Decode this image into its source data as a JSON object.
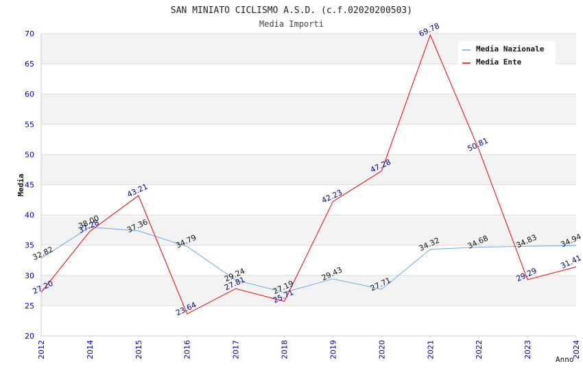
{
  "chart_data": {
    "type": "line",
    "title": "SAN MINIATO CICLISMO A.S.D. (c.f.02020200503)",
    "subtitle": "Media Importi",
    "xlabel": "Anno",
    "ylabel": "Media",
    "ylim": [
      20,
      70
    ],
    "y_ticks": [
      "20",
      "25",
      "30",
      "35",
      "40",
      "45",
      "50",
      "55",
      "60",
      "65",
      "70"
    ],
    "categories": [
      "2012",
      "2014",
      "2015",
      "2016",
      "2017",
      "2018",
      "2019",
      "2020",
      "2021",
      "2022",
      "2023",
      "2024"
    ],
    "series": [
      {
        "name": "Media Nazionale",
        "color": "#66aaee",
        "values": [
          32.82,
          38.0,
          37.36,
          34.79,
          29.24,
          27.19,
          29.43,
          27.71,
          34.32,
          34.68,
          34.83,
          34.94
        ],
        "labels": [
          "32.82",
          "38.00",
          "37.36",
          "34.79",
          "29.24",
          "27.19",
          "29.43",
          "27.71",
          "34.32",
          "34.68",
          "34.83",
          "34.94"
        ]
      },
      {
        "name": "Media Ente",
        "color": "#ee0000",
        "values": [
          27.2,
          37.28,
          43.21,
          23.64,
          27.81,
          25.71,
          42.23,
          47.28,
          69.78,
          50.81,
          29.29,
          31.41
        ],
        "labels": [
          "27.20",
          "37.28",
          "43.21",
          "23.64",
          "27.81",
          "25.71",
          "42.23",
          "47.28",
          "69.78",
          "50.81",
          "29.29",
          "31.41"
        ]
      }
    ],
    "legend": {
      "position": "top-right"
    },
    "grid": true,
    "colors": {
      "band": "#f3f3f3",
      "grid": "#dddddd",
      "axis_text": "#0000aa",
      "title_text": "#222222",
      "ente_label": "#000080",
      "nazionale_label": "#111111"
    }
  }
}
